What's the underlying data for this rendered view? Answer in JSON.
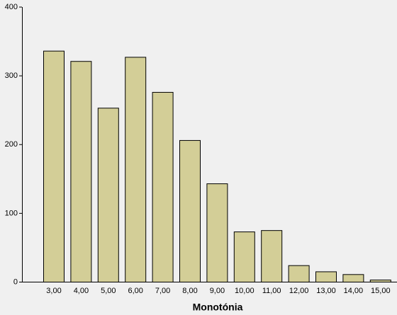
{
  "chart_data": {
    "type": "bar",
    "x_label": "Monotónia",
    "categories": [
      "3,00",
      "4,00",
      "5,00",
      "6,00",
      "7,00",
      "8,00",
      "9,00",
      "10,00",
      "11,00",
      "12,00",
      "13,00",
      "14,00",
      "15,00"
    ],
    "values": [
      336,
      321,
      253,
      327,
      276,
      206,
      143,
      73,
      75,
      24,
      15,
      11,
      3
    ],
    "color": "#d3ce97",
    "ylim": [
      0,
      400
    ],
    "yticks": [
      0,
      100,
      200,
      300,
      400
    ],
    "grid": false
  }
}
